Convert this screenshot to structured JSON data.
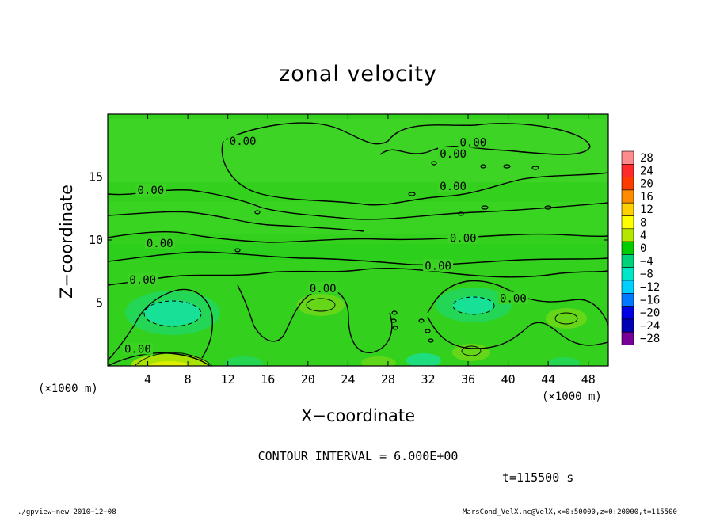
{
  "chart_data": {
    "type": "heatmap",
    "title": "zonal velocity",
    "xlabel": "X−coordinate",
    "ylabel": "Z−coordinate",
    "x_unit_left": "(×1000 m)",
    "x_unit_right": "(×1000 m)",
    "xlim": [
      0,
      50
    ],
    "ylim": [
      0,
      20
    ],
    "x_ticks": [
      4,
      8,
      12,
      16,
      20,
      24,
      28,
      32,
      36,
      40,
      44,
      48
    ],
    "y_ticks": [
      5,
      10,
      15
    ],
    "colorbar": {
      "levels": [
        28,
        24,
        20,
        16,
        12,
        8,
        4,
        0,
        -4,
        -8,
        -12,
        -16,
        -20,
        -24,
        -28
      ],
      "labels": [
        "28",
        "24",
        "20",
        "16",
        "12",
        "8",
        "4",
        "0",
        "−4",
        "−8",
        "−12",
        "−16",
        "−20",
        "−24",
        "−28"
      ],
      "colors": [
        "#ff8c8c",
        "#ff2a2a",
        "#ff3c00",
        "#ff8c00",
        "#ffd000",
        "#ffff00",
        "#b4e600",
        "#00cc00",
        "#00d27a",
        "#00e6c8",
        "#00d0ff",
        "#0078ff",
        "#0000e6",
        "#0000b4",
        "#780096"
      ]
    },
    "contour_labels": [
      {
        "text": "0.00",
        "x": 13.5,
        "z": 17.8
      },
      {
        "text": "0.00",
        "x": 36.5,
        "z": 17.7
      },
      {
        "text": "0.00",
        "x": 34.5,
        "z": 16.8
      },
      {
        "text": "0.00",
        "x": 4.3,
        "z": 13.9
      },
      {
        "text": "0.00",
        "x": 34.5,
        "z": 14.2
      },
      {
        "text": "0.00",
        "x": 5.2,
        "z": 9.7
      },
      {
        "text": "0.00",
        "x": 35.5,
        "z": 10.1
      },
      {
        "text": "0.00",
        "x": 33.0,
        "z": 7.9
      },
      {
        "text": "0.00",
        "x": 3.5,
        "z": 6.8
      },
      {
        "text": "0.00",
        "x": 21.5,
        "z": 6.1
      },
      {
        "text": "0.00",
        "x": 40.5,
        "z": 5.3
      },
      {
        "text": "0.00",
        "x": 3.0,
        "z": 1.3
      }
    ],
    "contour_interval_text": "CONTOUR INTERVAL = 6.000E+00",
    "time_text": "t=115500 s"
  },
  "footer": {
    "left": "./gpview−new  2010−12−08",
    "right": "MarsCond_VelX.nc@VelX,x=0:50000,z=0:20000,t=115500"
  }
}
